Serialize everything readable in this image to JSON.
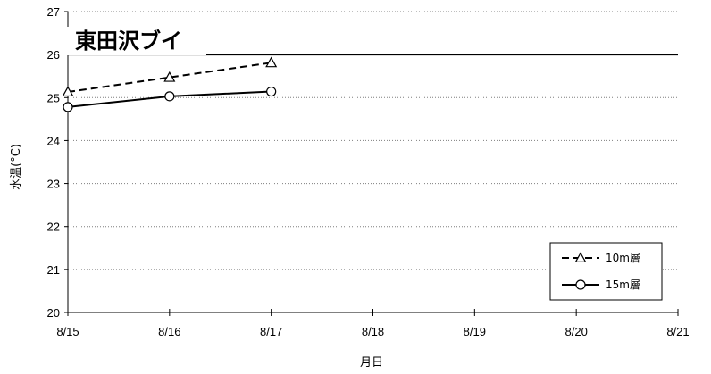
{
  "chart_data": {
    "type": "line",
    "title": "東田沢ブイ",
    "xlabel": "月日",
    "ylabel": "水温(°C)",
    "x": [
      "8/15",
      "8/16",
      "8/17",
      "8/18",
      "8/19",
      "8/20",
      "8/21"
    ],
    "ylim": [
      20,
      27
    ],
    "yticks": [
      "20",
      "21",
      "22",
      "23",
      "24",
      "25",
      "26",
      "27"
    ],
    "grid": true,
    "reference_line": 26,
    "legend_position": "bottom-right",
    "series": [
      {
        "name": "10m層",
        "marker": "triangle",
        "line_style": "dashed",
        "color": "#000000",
        "x": [
          0,
          1,
          2
        ],
        "values": [
          25.13,
          25.47,
          25.81
        ]
      },
      {
        "name": "15m層",
        "marker": "circle",
        "line_style": "solid",
        "color": "#000000",
        "x": [
          0,
          1,
          2
        ],
        "values": [
          24.78,
          25.03,
          25.14
        ]
      }
    ]
  }
}
